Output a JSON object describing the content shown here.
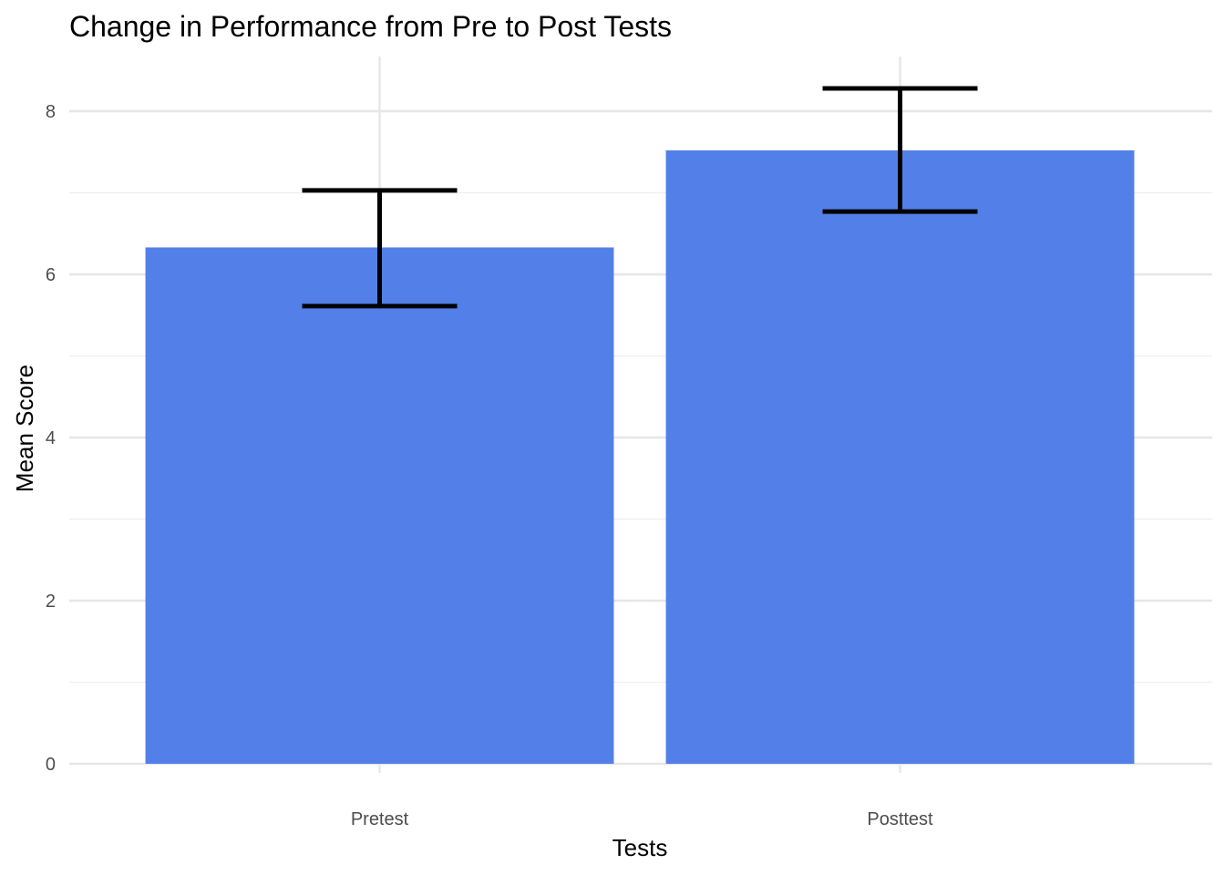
{
  "chart_data": {
    "type": "bar",
    "title": "Change in Performance from Pre to Post Tests",
    "xlabel": "Tests",
    "ylabel": "Mean Score",
    "categories": [
      "Pretest",
      "Posttest"
    ],
    "values": [
      6.33,
      7.52
    ],
    "error_bars": [
      {
        "lower": 5.61,
        "upper": 7.03
      },
      {
        "lower": 6.77,
        "upper": 8.28
      }
    ],
    "ylim": [
      0,
      8.7
    ],
    "yticks": [
      0,
      2,
      4,
      6,
      8
    ],
    "yticks_minor": [
      1,
      3,
      5,
      7
    ],
    "grid": true,
    "legend": "none",
    "colors": {
      "bar": "#5380E8",
      "error_bar": "#000000"
    }
  }
}
